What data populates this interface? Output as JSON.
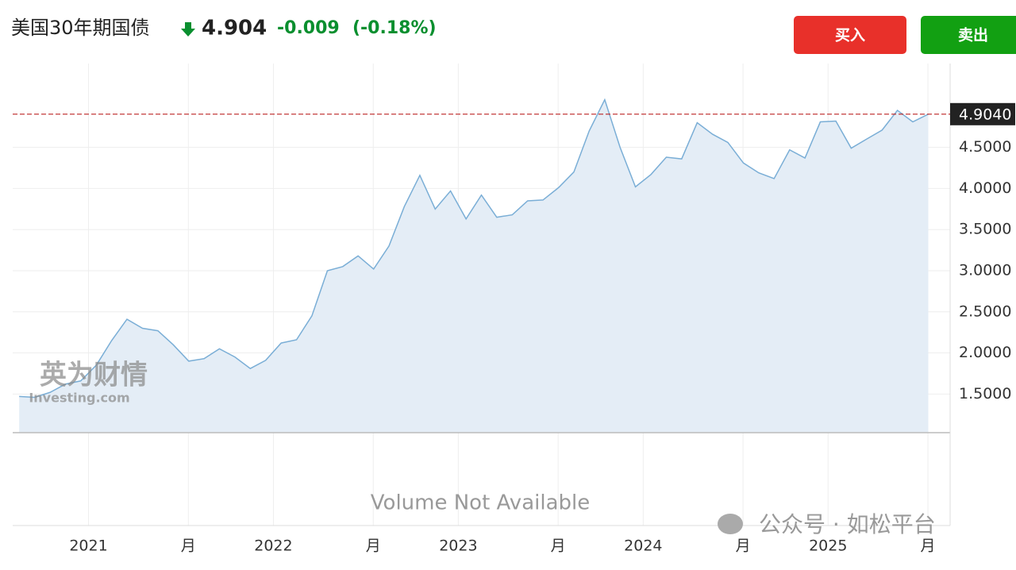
{
  "header": {
    "title": "美国30年期国债",
    "price": 4.904,
    "change": -0.009,
    "change_pct": "(-0.18%)"
  },
  "buttons": {
    "buy": "买入",
    "sell": "卖出"
  },
  "watermark": {
    "cn": "英为财情",
    "en": "Investing.com"
  },
  "volume_note": "Volume Not Available",
  "footer_watermark": "公众号 · 如松平台",
  "chart_data": {
    "type": "area",
    "x": [
      2020.625,
      2020.708,
      2020.792,
      2020.875,
      2020.958,
      2021.042,
      2021.125,
      2021.208,
      2021.292,
      2021.375,
      2021.458,
      2021.542,
      2021.625,
      2021.708,
      2021.792,
      2021.875,
      2021.958,
      2022.042,
      2022.125,
      2022.208,
      2022.292,
      2022.375,
      2022.458,
      2022.542,
      2022.625,
      2022.708,
      2022.792,
      2022.875,
      2022.958,
      2023.042,
      2023.125,
      2023.208,
      2023.292,
      2023.375,
      2023.458,
      2023.542,
      2023.625,
      2023.708,
      2023.792,
      2023.875,
      2023.958,
      2024.042,
      2024.125,
      2024.208,
      2024.292,
      2024.375,
      2024.458,
      2024.542,
      2024.625,
      2024.708,
      2024.792,
      2024.875,
      2024.958,
      2025.042,
      2025.125,
      2025.208,
      2025.292,
      2025.375,
      2025.458,
      2025.542
    ],
    "series": [
      {
        "color": "#7aaed6",
        "fill": "#e4edf6",
        "values": [
          1.47,
          1.46,
          1.52,
          1.62,
          1.66,
          1.85,
          2.15,
          2.41,
          2.3,
          2.27,
          2.1,
          1.9,
          1.93,
          2.05,
          1.95,
          1.81,
          1.91,
          2.12,
          2.16,
          2.45,
          3.0,
          3.05,
          3.18,
          3.02,
          3.3,
          3.78,
          4.16,
          3.75,
          3.97,
          3.63,
          3.92,
          3.65,
          3.68,
          3.85,
          3.86,
          4.01,
          4.2,
          4.7,
          5.08,
          4.5,
          4.02,
          4.17,
          4.38,
          4.36,
          4.8,
          4.66,
          4.56,
          4.31,
          4.19,
          4.12,
          4.47,
          4.37,
          4.81,
          4.82,
          4.49,
          4.6,
          4.71,
          4.95,
          4.81,
          4.904
        ]
      }
    ],
    "last_price": {
      "value": 4.904,
      "label": "4.9040"
    },
    "xlim": [
      2020.59,
      2025.66
    ],
    "xticks": [
      2021,
      {
        "value": 2021.54,
        "label": "月"
      },
      2022,
      {
        "value": 2022.54,
        "label": "月"
      },
      2023,
      {
        "value": 2023.54,
        "label": "月"
      },
      2024,
      {
        "value": 2024.54,
        "label": "月"
      },
      2025,
      {
        "value": 2025.54,
        "label": "月"
      }
    ],
    "ylim": [
      1.03,
      5.52
    ],
    "yticks": [
      {
        "value": 1.5,
        "label": "1.5000"
      },
      {
        "value": 2,
        "label": "2.0000"
      },
      {
        "value": 2.5,
        "label": "2.5000"
      },
      {
        "value": 3,
        "label": "3.0000"
      },
      {
        "value": 3.5,
        "label": "3.5000"
      },
      {
        "value": 4,
        "label": "4.0000"
      },
      {
        "value": 4.5,
        "label": "4.5000"
      }
    ],
    "grid": true
  }
}
